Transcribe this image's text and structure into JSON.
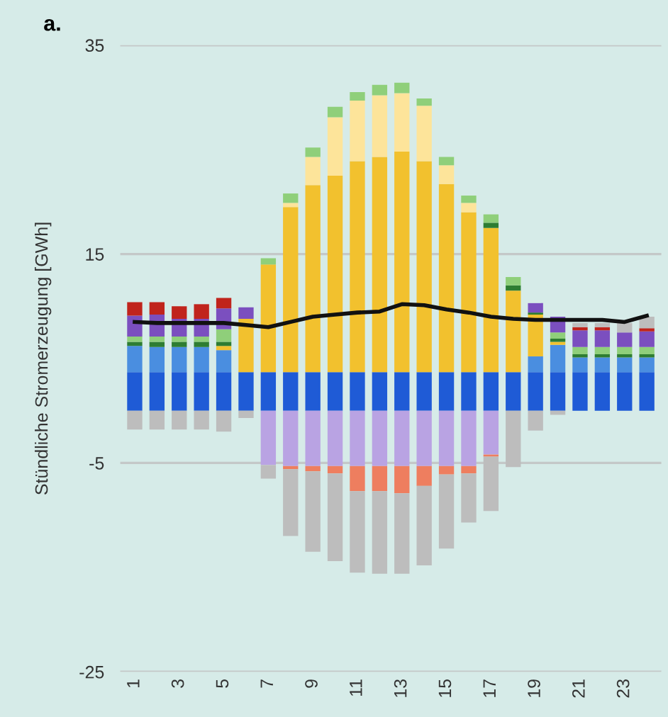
{
  "chart_data": {
    "type": "bar",
    "stacked": true,
    "title": "a.",
    "ylabel": "Stündliche Stromerzeugung [GWh]",
    "categories": [
      "1",
      null,
      "3",
      null,
      "5",
      null,
      "7",
      null,
      "9",
      null,
      "11",
      null,
      "13",
      null,
      "15",
      null,
      "17",
      null,
      "19",
      null,
      "21",
      null,
      "23",
      null
    ],
    "series": [
      {
        "color": "#1f5bd6",
        "values": [
          3.7,
          3.7,
          3.7,
          3.7,
          3.7,
          3.7,
          3.7,
          3.7,
          3.7,
          3.7,
          3.7,
          3.7,
          3.7,
          3.7,
          3.7,
          3.7,
          3.7,
          3.7,
          3.7,
          3.7,
          3.7,
          3.7,
          3.7,
          3.7
        ]
      },
      {
        "color": "#4a8ee0",
        "values": [
          2.5,
          2.4,
          2.4,
          2.4,
          2.1,
          0,
          0,
          0,
          0,
          0,
          0,
          0,
          0,
          0,
          0,
          0,
          0,
          0,
          1.5,
          2.6,
          1.4,
          1.4,
          1.4,
          1.4
        ]
      },
      {
        "color": "#f2c12e",
        "values": [
          0,
          0,
          0,
          0,
          0.4,
          5.1,
          10.3,
          15.8,
          17.9,
          18.8,
          20.2,
          20.6,
          21.1,
          20.2,
          18.0,
          15.3,
          13.8,
          7.8,
          4.0,
          0.3,
          0,
          0,
          0,
          0
        ]
      },
      {
        "color": "#fde49a",
        "values": [
          0,
          0,
          0,
          0,
          0,
          0,
          0,
          0.4,
          2.7,
          5.6,
          5.8,
          5.9,
          5.6,
          5.3,
          1.8,
          0.9,
          0,
          0,
          0,
          0,
          0,
          0,
          0,
          0
        ]
      },
      {
        "color": "#2e7d32",
        "values": [
          0.4,
          0.5,
          0.5,
          0.5,
          0.4,
          0,
          0,
          0,
          0,
          0,
          0,
          0,
          0,
          0,
          0,
          0,
          0.5,
          0.5,
          0.2,
          0.3,
          0.3,
          0.3,
          0.3,
          0.3
        ]
      },
      {
        "color": "#8fcf7a",
        "values": [
          0.5,
          0.5,
          0.5,
          0.5,
          1.2,
          0,
          0.6,
          0.9,
          0.9,
          1.0,
          0.8,
          1.0,
          1.0,
          0.7,
          0.8,
          0.7,
          0.8,
          0.8,
          0,
          0.6,
          0.7,
          0.7,
          0.7,
          0.7
        ]
      },
      {
        "color": "#7b4fbf",
        "values": [
          2.0,
          2.1,
          1.7,
          1.7,
          2.0,
          1.1,
          0,
          0,
          0,
          0,
          0,
          0,
          0,
          0,
          0,
          0,
          0,
          0,
          0.9,
          1.5,
          1.6,
          1.6,
          1.4,
          1.5
        ]
      },
      {
        "color": "#c0241c",
        "values": [
          1.3,
          1.2,
          1.2,
          1.4,
          1.0,
          0,
          0,
          0,
          0,
          0,
          0,
          0,
          0,
          0,
          0,
          0,
          0,
          0,
          0,
          0,
          0.3,
          0.3,
          0,
          0.3
        ]
      },
      {
        "color": "#b9a3e3",
        "values": [
          0,
          0,
          0,
          0,
          0,
          0,
          -5.2,
          -5.3,
          -5.3,
          -5.3,
          -5.3,
          -5.3,
          -5.3,
          -5.3,
          -5.3,
          -5.3,
          -4.2,
          0,
          0,
          0,
          0,
          0,
          0,
          0
        ]
      },
      {
        "color": "#ee7e5f",
        "values": [
          0,
          0,
          0,
          0,
          0,
          0,
          0,
          -0.3,
          -0.5,
          -0.7,
          -2.4,
          -2.4,
          -2.6,
          -1.9,
          -0.8,
          -0.7,
          -0.2,
          0,
          0,
          0,
          0,
          0,
          0,
          0
        ]
      },
      {
        "color": "#bdbdbd",
        "values": [
          -1.8,
          -1.8,
          -1.8,
          -1.8,
          -2.0,
          -0.7,
          -1.3,
          -6.4,
          -7.7,
          -8.4,
          -7.8,
          -7.9,
          -7.7,
          -7.6,
          -7.1,
          -4.7,
          -5.2,
          -5.4,
          -1.9,
          -0.4,
          0.4,
          0.4,
          0.9,
          1.1
        ]
      },
      {
        "type": "line",
        "color": "#111111",
        "values": [
          8.5,
          8.4,
          8.4,
          8.4,
          8.4,
          8.2,
          8.0,
          8.5,
          9.0,
          9.2,
          9.4,
          9.5,
          10.2,
          10.1,
          9.7,
          9.4,
          9.0,
          8.8,
          8.7,
          8.7,
          8.7,
          8.7,
          8.5,
          9.1
        ]
      }
    ],
    "ylim": [
      -25,
      35
    ],
    "yticks": [
      -25,
      -5,
      15,
      35
    ],
    "grid": "y"
  }
}
